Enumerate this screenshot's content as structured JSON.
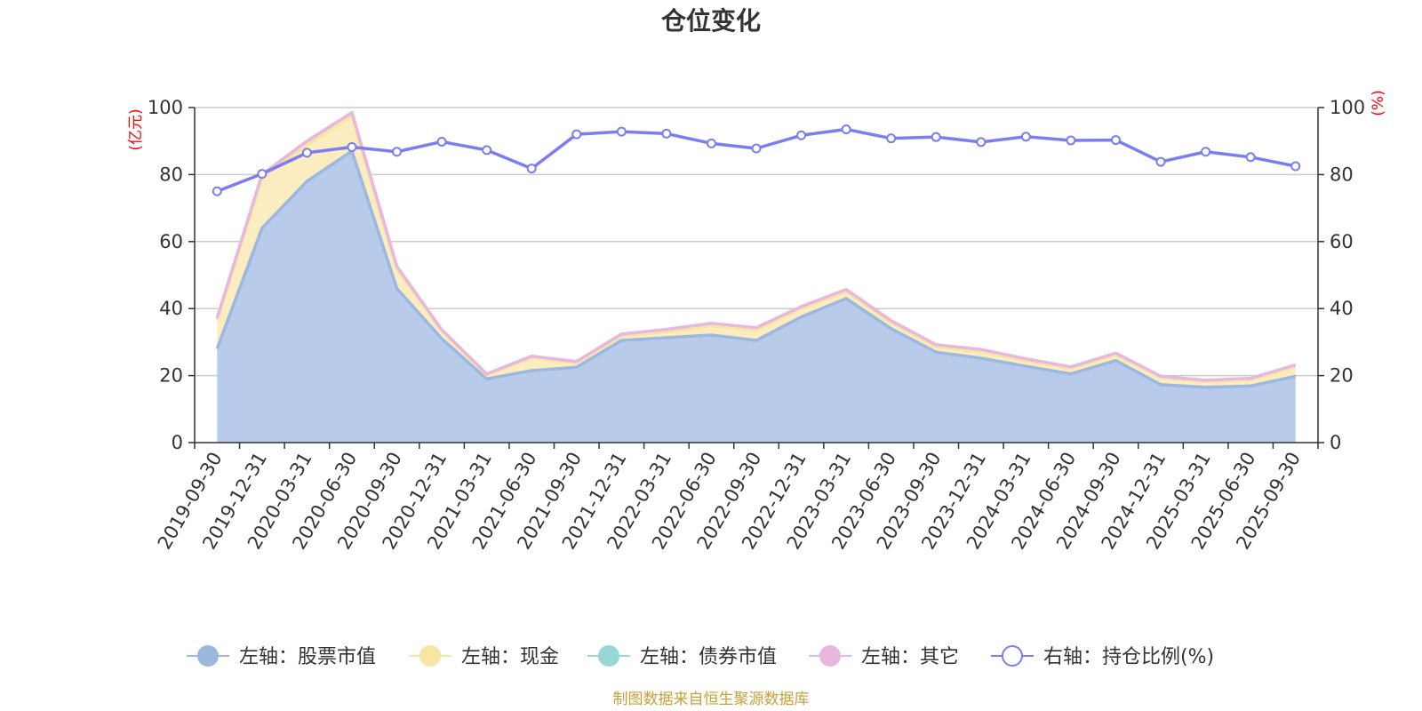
{
  "chart_data": {
    "type": "area",
    "title": "仓位变化",
    "left_axis_unit": "(亿元)",
    "right_axis_unit": "(%)",
    "left_ylim": [
      0,
      100
    ],
    "right_ylim": [
      0,
      100
    ],
    "y_ticks": [
      0,
      20,
      40,
      60,
      80,
      100
    ],
    "categories": [
      "2019-09-30",
      "2019-12-31",
      "2020-03-31",
      "2020-06-30",
      "2020-09-30",
      "2020-12-31",
      "2021-03-31",
      "2021-06-30",
      "2021-09-30",
      "2021-12-31",
      "2022-03-31",
      "2022-06-30",
      "2022-09-30",
      "2022-12-31",
      "2023-03-31",
      "2023-06-30",
      "2023-09-30",
      "2023-12-31",
      "2024-03-31",
      "2024-06-30",
      "2024-09-30",
      "2024-12-31",
      "2025-03-31",
      "2025-06-30",
      "2025-09-30"
    ],
    "series": [
      {
        "name": "左轴：股票市值",
        "axis": "left",
        "stack": true,
        "values": [
          28,
          64,
          78,
          87,
          46,
          31,
          19,
          21.5,
          22.5,
          30.5,
          31.3,
          32.1,
          30.5,
          37.5,
          43,
          34,
          27,
          25.2,
          22.8,
          20.5,
          24.5,
          17.3,
          16.5,
          16.9,
          19.8
        ]
      },
      {
        "name": "左轴：现金",
        "axis": "left",
        "stack": true,
        "values": [
          8.5,
          15,
          10.8,
          10.5,
          5.8,
          2.3,
          1.2,
          3.8,
          1.3,
          1.3,
          1.8,
          2.7,
          3.1,
          2.5,
          2,
          1.8,
          1.6,
          1.9,
          1.6,
          1.6,
          1.6,
          2.1,
          1.7,
          1.9,
          2.8
        ]
      },
      {
        "name": "左轴：债券市值",
        "axis": "left",
        "stack": true,
        "values": [
          0,
          0,
          0,
          0,
          0,
          0,
          0,
          0,
          0,
          0,
          0,
          0,
          0,
          0,
          0,
          0,
          0,
          0,
          0,
          0,
          0,
          0,
          0,
          0,
          0
        ]
      },
      {
        "name": "左轴：其它",
        "axis": "left",
        "stack": true,
        "values": [
          0.7,
          1,
          1.2,
          1,
          0.8,
          0.4,
          0.3,
          0.5,
          0.4,
          0.6,
          0.7,
          0.8,
          0.7,
          0.6,
          0.7,
          0.6,
          0.6,
          0.7,
          0.6,
          0.5,
          0.6,
          0.4,
          0.4,
          0.4,
          0.6
        ]
      },
      {
        "name": "右轴：持仓比例(%)",
        "axis": "right",
        "stack": false,
        "values": [
          75,
          80.2,
          86.5,
          88.2,
          86.8,
          89.8,
          87.3,
          81.8,
          92,
          92.8,
          92.2,
          89.3,
          87.8,
          91.7,
          93.5,
          90.8,
          91.2,
          89.7,
          91.3,
          90.2,
          90.3,
          83.8,
          86.8,
          85.2,
          82.5
        ]
      }
    ],
    "colors": {
      "stock_fill": "#b8cbea",
      "stock_line": "#9db8df",
      "cash_fill": "#fbedbf",
      "cash_line": "#f7e5a6",
      "bond_fill": "#99d6d6",
      "bond_line": "#99d6d6",
      "other_fill": "#e7b7dd",
      "other_line": "#e7b7dd",
      "ratio_line": "#7b7ef0",
      "axis_text": "#333333",
      "grid": "#cccccc",
      "unit_text": "#ff0000",
      "footer_text": "#c8a037"
    },
    "legend_position": "bottom",
    "grid": true
  },
  "footer": "制图数据来自恒生聚源数据库"
}
